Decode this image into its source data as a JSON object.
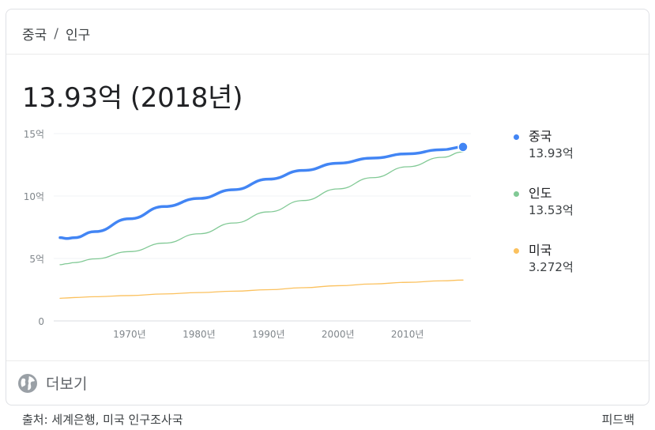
{
  "breadcrumb": {
    "country": "중국",
    "separator": "/",
    "topic": "인구"
  },
  "headline": {
    "value": "13.93억",
    "year": "(2018년)"
  },
  "chart_data": {
    "type": "line",
    "x_range": [
      1960,
      2018
    ],
    "ylim": [
      0,
      15
    ],
    "y_ticks": [
      {
        "value": 15,
        "label": "15억"
      },
      {
        "value": 10,
        "label": "10억"
      },
      {
        "value": 5,
        "label": "5억"
      },
      {
        "value": 0,
        "label": "0"
      }
    ],
    "x_ticks": [
      {
        "value": 1970,
        "label": "1970년"
      },
      {
        "value": 1980,
        "label": "1980년"
      },
      {
        "value": 1990,
        "label": "1990년"
      },
      {
        "value": 2000,
        "label": "2000년"
      },
      {
        "value": 2010,
        "label": "2010년"
      }
    ],
    "grid": true,
    "legend_position": "right",
    "x": [
      1960,
      1961,
      1962,
      1965,
      1970,
      1975,
      1980,
      1985,
      1990,
      1995,
      2000,
      2005,
      2010,
      2015,
      2018
    ],
    "series": [
      {
        "name": "중국",
        "color": "#4285f4",
        "value_label": "13.93억",
        "values": [
          6.67,
          6.6,
          6.66,
          7.15,
          8.18,
          9.16,
          9.81,
          10.51,
          11.35,
          12.05,
          12.63,
          13.04,
          13.38,
          13.71,
          13.93
        ]
      },
      {
        "name": "인도",
        "color": "#81c995",
        "value_label": "13.53억",
        "values": [
          4.5,
          4.58,
          4.67,
          4.97,
          5.55,
          6.23,
          6.98,
          7.84,
          8.73,
          9.64,
          10.57,
          11.47,
          12.34,
          13.1,
          13.53
        ]
      },
      {
        "name": "미국",
        "color": "#fbc15e",
        "value_label": "3.272억",
        "values": [
          1.81,
          1.84,
          1.87,
          1.94,
          2.03,
          2.16,
          2.27,
          2.38,
          2.5,
          2.66,
          2.82,
          2.96,
          3.09,
          3.21,
          3.27
        ]
      }
    ]
  },
  "more": {
    "icon": "globe-icon",
    "label": "더보기"
  },
  "footer": {
    "source": "출처: 세계은행, 미국 인구조사국",
    "feedback": "피드백"
  }
}
